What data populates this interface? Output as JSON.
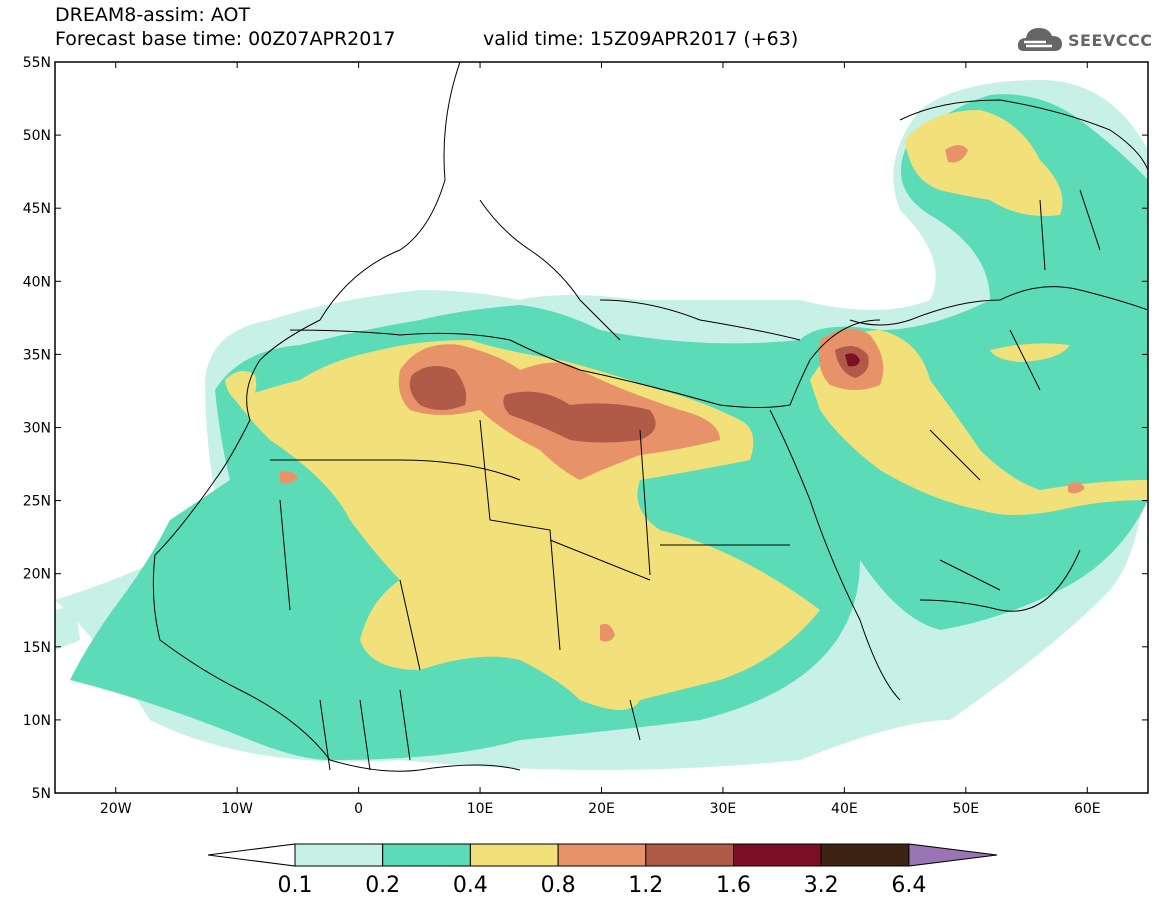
{
  "header": {
    "title": "DREAM8-assim: AOT",
    "base_time": "Forecast base time: 00Z07APR2017",
    "valid_time": "valid time: 15Z09APR2017 (+63)",
    "logo_text": "SEEVCCC",
    "logo_icon": "cloud-logo-icon"
  },
  "map": {
    "lat_labels": [
      "55N",
      "50N",
      "45N",
      "40N",
      "35N",
      "30N",
      "25N",
      "20N",
      "15N",
      "10N",
      "5N"
    ],
    "lon_labels": [
      "20W",
      "10W",
      "0",
      "10E",
      "20E",
      "30E",
      "40E",
      "50E",
      "60E"
    ],
    "lat_range": [
      5,
      55
    ],
    "lon_range": [
      -25,
      65
    ]
  },
  "legend": {
    "labels": [
      "0.1",
      "0.2",
      "0.4",
      "0.8",
      "1.2",
      "1.6",
      "3.2",
      "6.4"
    ],
    "colors": [
      "#c7f0e6",
      "#5bdcb6",
      "#f2e17a",
      "#e8926a",
      "#b05a48",
      "#7a0f26",
      "#3d2314",
      "#9a75b3"
    ]
  }
}
